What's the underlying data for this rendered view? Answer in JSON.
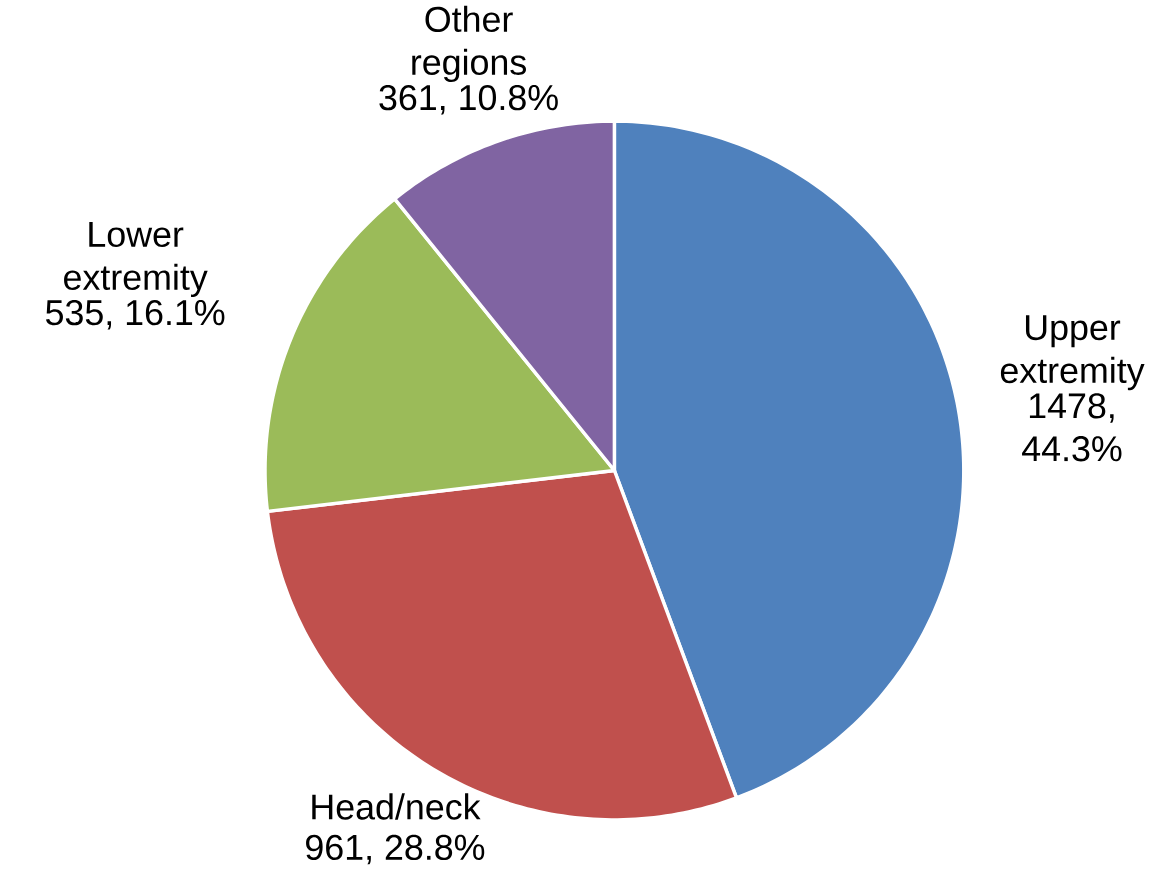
{
  "chart_data": {
    "type": "pie",
    "categories": [
      "Upper extremity",
      "Head/neck",
      "Lower extremity",
      "Other regions"
    ],
    "values": [
      1478,
      961,
      535,
      361
    ],
    "colors": [
      "#4f81bd",
      "#c0504d",
      "#9bbb59",
      "#8064a2"
    ],
    "value_labels": [
      "1478, 44.3%",
      "961, 28.8%",
      "535, 16.1%",
      "361, 10.8%"
    ]
  }
}
